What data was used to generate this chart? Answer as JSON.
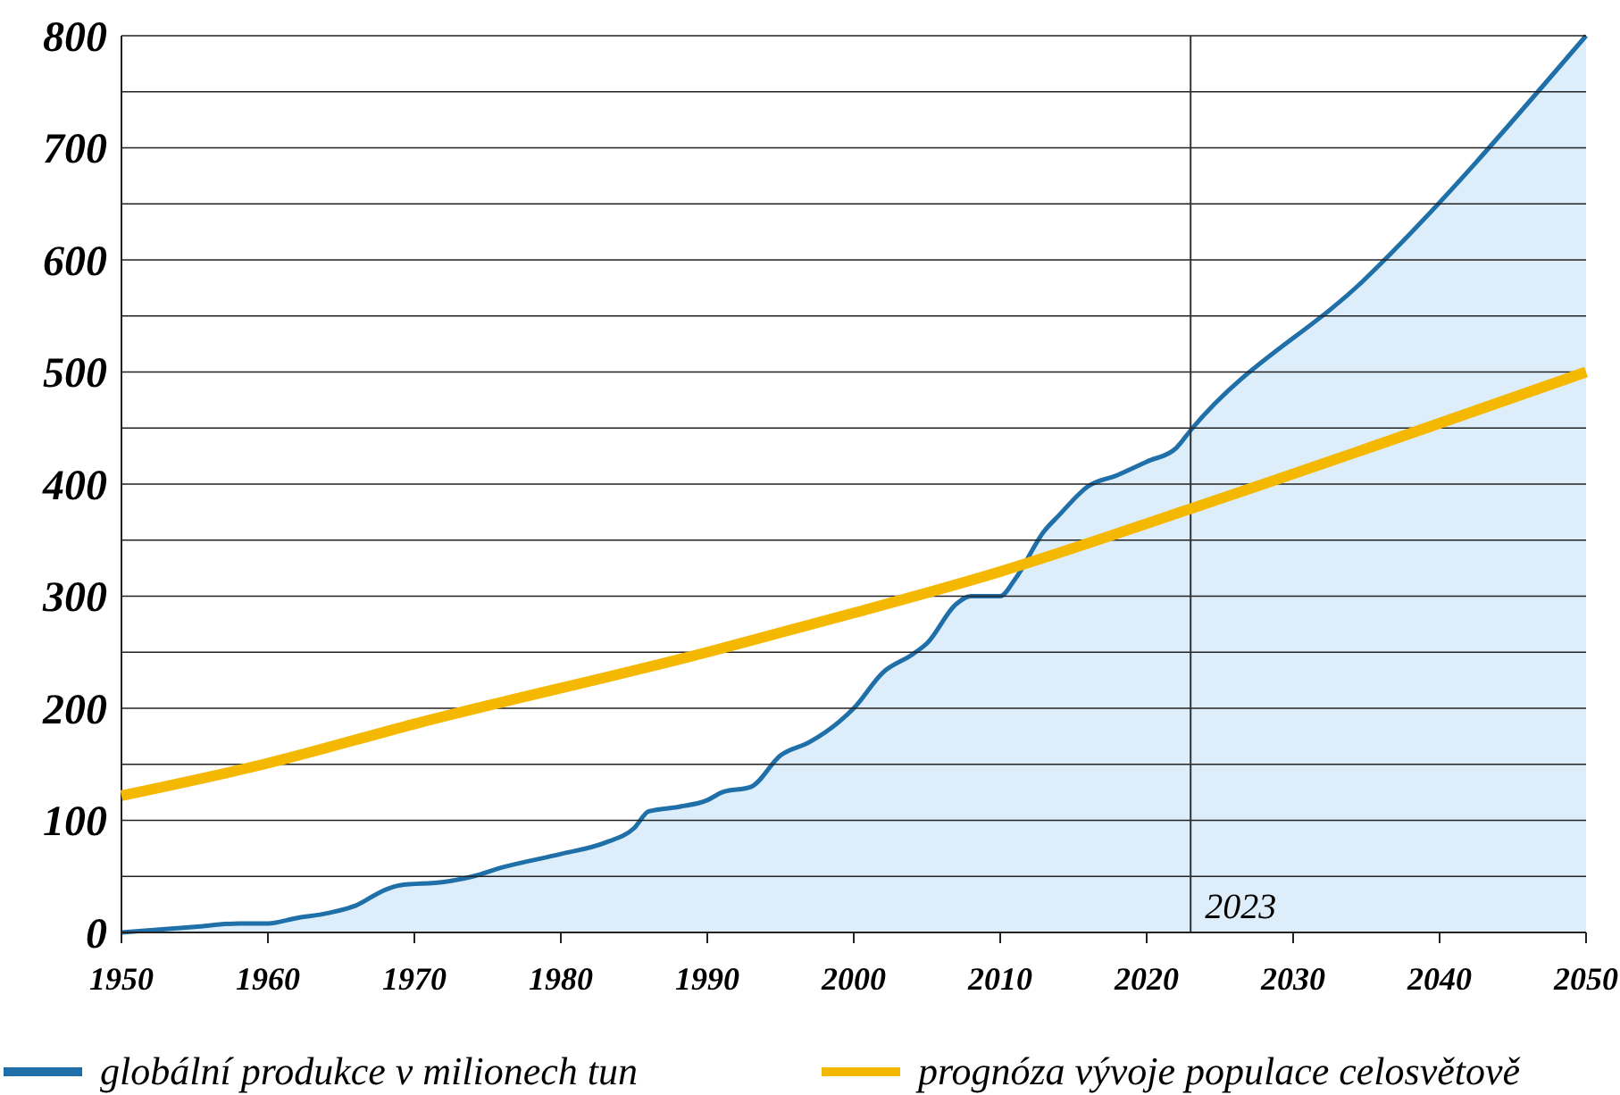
{
  "chart_data": {
    "type": "line",
    "xlim": [
      1950,
      2050
    ],
    "xticks": [
      1950,
      1960,
      1970,
      1980,
      1990,
      2000,
      2010,
      2020,
      2030,
      2040,
      2050
    ],
    "ylim": [
      0,
      800
    ],
    "yticks": [
      0,
      {
        "value": 50,
        "label": null
      },
      100,
      {
        "value": 150,
        "label": null
      },
      200,
      {
        "value": 250,
        "label": null
      },
      300,
      {
        "value": 350,
        "label": null
      },
      400,
      {
        "value": 450,
        "label": null
      },
      500,
      {
        "value": 550,
        "label": null
      },
      600,
      {
        "value": 650,
        "label": null
      },
      700,
      {
        "value": 750,
        "label": null
      },
      800
    ],
    "grid": "y",
    "legend": "bottom",
    "marker": "none",
    "line_style": "solid",
    "ref_lines": [
      {
        "axis": "x",
        "value": 2023,
        "label": "2023",
        "color": "#333333"
      }
    ],
    "series": [
      {
        "name": "globální produkce v milionech tun",
        "type": "area",
        "color": "#1f6fa8",
        "x": [
          1950,
          1955,
          1958,
          1960,
          1962,
          1964,
          1966,
          1968,
          1969,
          1972,
          1974,
          1976,
          1980,
          1983,
          1985,
          1986,
          1988,
          1990,
          1991,
          1993,
          1995,
          1997,
          1999,
          2000,
          2002,
          2004,
          2005,
          2007,
          2008,
          2010,
          2011,
          2013,
          2014,
          2016,
          2018,
          2020,
          2022,
          2023,
          2035,
          2050
        ],
        "values": [
          0,
          5,
          8,
          8,
          13,
          17,
          24,
          38,
          42,
          45,
          50,
          58,
          70,
          80,
          93,
          108,
          112,
          118,
          125,
          130,
          158,
          170,
          188,
          200,
          232,
          248,
          258,
          293,
          300,
          300,
          315,
          358,
          372,
          398,
          408,
          420,
          432,
          448,
          584,
          800
        ]
      },
      {
        "name": "prognóza vývoje populace celosvětově",
        "color": "#f5b800",
        "x": [
          1950,
          1960,
          1970,
          1990,
          2000,
          2010,
          2023,
          2050
        ],
        "values": [
          122,
          151,
          186,
          250,
          285,
          322,
          378,
          500
        ]
      }
    ]
  }
}
